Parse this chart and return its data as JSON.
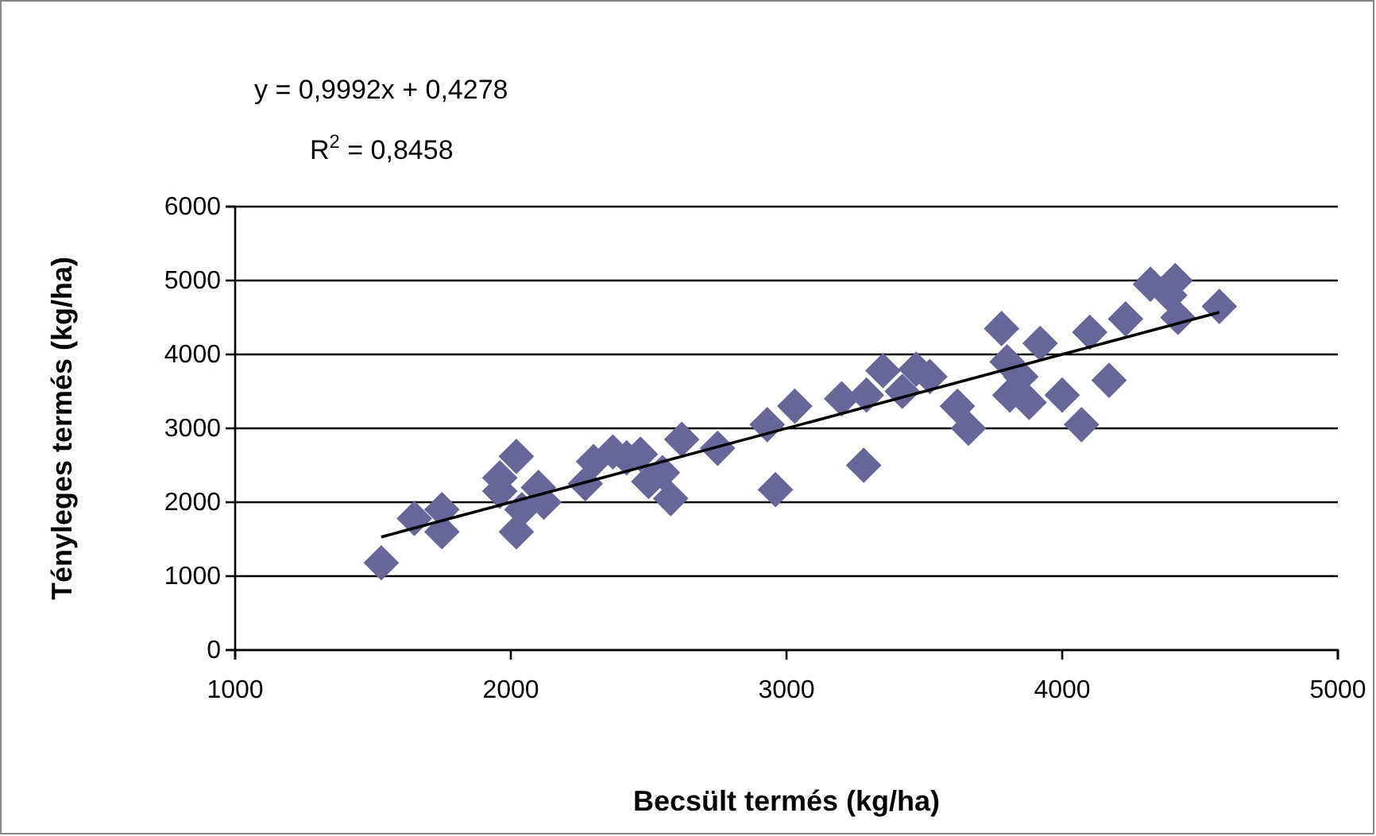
{
  "chart_data": {
    "type": "scatter",
    "xlabel": "Becsült termés (kg/ha)",
    "ylabel": "Tényleges termés (kg/ha)",
    "annotations": [
      "y = 0,9992x + 0,4278",
      "R$^{2}$ = 0,8458"
    ],
    "xlim": [
      1000,
      5000
    ],
    "xticks": [
      1000,
      2000,
      3000,
      4000,
      5000
    ],
    "ylim": [
      0,
      6000
    ],
    "yticks": [
      0,
      1000,
      2000,
      3000,
      4000,
      5000,
      6000
    ],
    "grid": "y",
    "series": [
      {
        "color": "#666699",
        "marker": "diamond",
        "x": [
          1530,
          1650,
          1750,
          1750,
          1960,
          1960,
          2020,
          2020,
          2040,
          2100,
          2120,
          2270,
          2300,
          2370,
          2420,
          2470,
          2500,
          2550,
          2580,
          2620,
          2750,
          2930,
          2960,
          3030,
          3200,
          3280,
          3290,
          3350,
          3420,
          3470,
          3520,
          3620,
          3660,
          3780,
          3800,
          3810,
          3850,
          3880,
          3920,
          4000,
          4070,
          4100,
          4170,
          4230,
          4320,
          4390,
          4410,
          4420,
          4570
        ],
        "values": [
          1180,
          1780,
          1600,
          1900,
          2330,
          2150,
          2620,
          1600,
          1900,
          2200,
          2000,
          2250,
          2550,
          2680,
          2600,
          2650,
          2280,
          2400,
          2050,
          2850,
          2730,
          3050,
          2170,
          3300,
          3400,
          2500,
          3450,
          3780,
          3500,
          3800,
          3700,
          3300,
          3000,
          4350,
          3900,
          3450,
          3700,
          3350,
          4150,
          3450,
          3050,
          4300,
          3650,
          4480,
          4950,
          4800,
          5000,
          4500,
          4650
        ]
      },
      {
        "type": "line",
        "color": "#000000",
        "marker": "none",
        "x": [
          1530,
          4570
        ],
        "values": [
          1530,
          4570
        ]
      }
    ]
  }
}
